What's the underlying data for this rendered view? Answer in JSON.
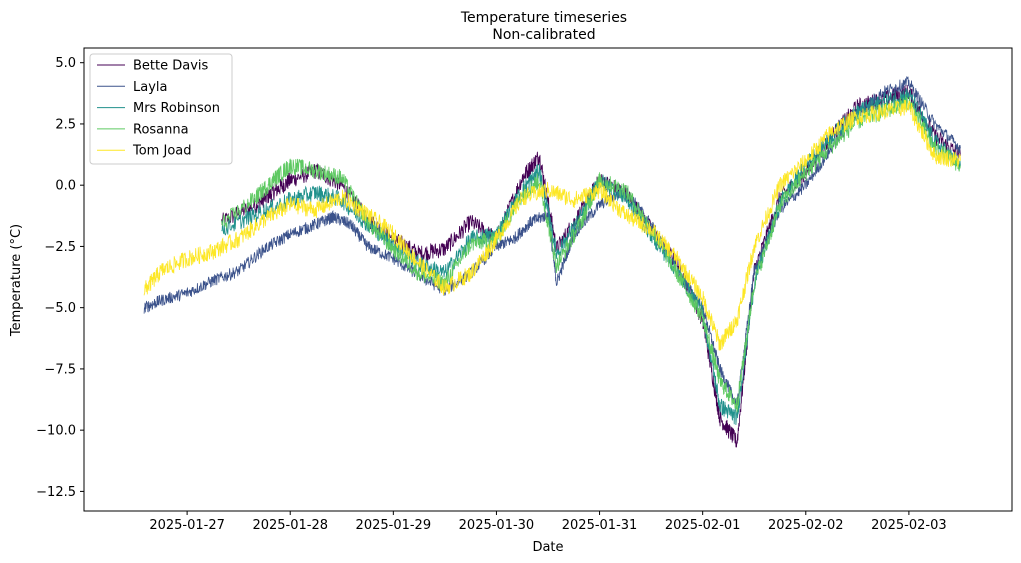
{
  "chart_data": {
    "type": "line",
    "title": "Temperature timeseries",
    "subtitle": "Non-calibrated",
    "xlabel": "Date",
    "ylabel": "Temperature (°C)",
    "xlim": [
      "2025-01-26T00:00",
      "2025-02-04T00:00"
    ],
    "ylim": [
      -13.3,
      5.6
    ],
    "x_ticks": [
      "2025-01-27",
      "2025-01-28",
      "2025-01-29",
      "2025-01-30",
      "2025-01-31",
      "2025-02-01",
      "2025-02-02",
      "2025-02-03"
    ],
    "y_ticks": [
      5.0,
      2.5,
      0.0,
      -2.5,
      -5.0,
      -7.5,
      -10.0,
      -12.5
    ],
    "y_tick_labels": [
      "5.0",
      "2.5",
      "0.0",
      "−2.5",
      "−5.0",
      "−7.5",
      "−10.0",
      "−12.5"
    ],
    "grid": false,
    "legend_position": "top-left",
    "series": [
      {
        "name": "Bette Davis",
        "color": "#440154",
        "noise": 0.35,
        "x": [
          "2025-01-27T08:00",
          "2025-01-27T16:00",
          "2025-01-27T20:00",
          "2025-01-28T00:00",
          "2025-01-28T06:00",
          "2025-01-28T12:00",
          "2025-01-28T18:00",
          "2025-01-29T00:00",
          "2025-01-29T06:00",
          "2025-01-29T12:00",
          "2025-01-29T18:00",
          "2025-01-30T00:00",
          "2025-01-30T06:00",
          "2025-01-30T10:00",
          "2025-01-30T14:00",
          "2025-01-30T20:00",
          "2025-01-31T00:00",
          "2025-01-31T06:00",
          "2025-01-31T12:00",
          "2025-01-31T18:00",
          "2025-02-01T00:00",
          "2025-02-01T04:00",
          "2025-02-01T08:00",
          "2025-02-01T12:00",
          "2025-02-01T18:00",
          "2025-02-02T00:00",
          "2025-02-02T06:00",
          "2025-02-02T12:00",
          "2025-02-02T18:00",
          "2025-02-03T00:00",
          "2025-02-03T06:00",
          "2025-02-03T12:00"
        ],
        "y": [
          -1.5,
          -0.8,
          -0.3,
          0.2,
          0.6,
          0.0,
          -1.4,
          -2.2,
          -2.8,
          -2.6,
          -1.5,
          -2.2,
          0.3,
          1.2,
          -2.6,
          -1.0,
          0.2,
          -0.3,
          -1.8,
          -3.2,
          -5.5,
          -9.5,
          -10.5,
          -3.5,
          -0.5,
          0.5,
          2.0,
          3.2,
          3.5,
          3.8,
          2.0,
          1.2
        ]
      },
      {
        "name": "Layla",
        "color": "#3b528b",
        "noise": 0.25,
        "x": [
          "2025-01-26T14:00",
          "2025-01-26T18:00",
          "2025-01-27T00:00",
          "2025-01-27T06:00",
          "2025-01-27T12:00",
          "2025-01-27T18:00",
          "2025-01-28T00:00",
          "2025-01-28T06:00",
          "2025-01-28T10:00",
          "2025-01-28T14:00",
          "2025-01-28T18:00",
          "2025-01-29T00:00",
          "2025-01-29T06:00",
          "2025-01-29T12:00",
          "2025-01-29T18:00",
          "2025-01-30T00:00",
          "2025-01-30T04:00",
          "2025-01-30T08:00",
          "2025-01-30T12:00",
          "2025-01-30T14:00",
          "2025-01-30T18:00",
          "2025-01-31T00:00",
          "2025-01-31T06:00",
          "2025-01-31T12:00",
          "2025-01-31T18:00",
          "2025-02-01T00:00",
          "2025-02-01T04:00",
          "2025-02-01T08:00",
          "2025-02-01T12:00",
          "2025-02-01T18:00",
          "2025-02-02T00:00",
          "2025-02-02T06:00",
          "2025-02-02T12:00",
          "2025-02-02T18:00",
          "2025-02-03T00:00",
          "2025-02-03T06:00",
          "2025-02-03T12:00"
        ],
        "y": [
          -5.0,
          -4.7,
          -4.4,
          -3.9,
          -3.5,
          -2.6,
          -2.0,
          -1.6,
          -1.3,
          -1.6,
          -2.5,
          -3.0,
          -3.7,
          -4.3,
          -3.6,
          -2.5,
          -2.2,
          -1.5,
          -1.2,
          -4.0,
          -2.0,
          -0.8,
          -0.2,
          -1.6,
          -3.5,
          -5.0,
          -7.5,
          -9.0,
          -3.5,
          -1.0,
          0.0,
          1.5,
          3.0,
          3.8,
          4.2,
          2.5,
          1.5
        ]
      },
      {
        "name": "Mrs Robinson",
        "color": "#21918c",
        "noise": 0.35,
        "x": [
          "2025-01-27T08:00",
          "2025-01-27T16:00",
          "2025-01-28T00:00",
          "2025-01-28T06:00",
          "2025-01-28T12:00",
          "2025-01-28T18:00",
          "2025-01-29T00:00",
          "2025-01-29T06:00",
          "2025-01-29T12:00",
          "2025-01-29T18:00",
          "2025-01-30T00:00",
          "2025-01-30T06:00",
          "2025-01-30T10:00",
          "2025-01-30T14:00",
          "2025-01-30T20:00",
          "2025-01-31T00:00",
          "2025-01-31T06:00",
          "2025-01-31T12:00",
          "2025-01-31T18:00",
          "2025-02-01T00:00",
          "2025-02-01T04:00",
          "2025-02-01T08:00",
          "2025-02-01T12:00",
          "2025-02-01T18:00",
          "2025-02-02T00:00",
          "2025-02-02T06:00",
          "2025-02-02T12:00",
          "2025-02-02T18:00",
          "2025-02-03T00:00",
          "2025-02-03T06:00",
          "2025-02-03T12:00"
        ],
        "y": [
          -1.8,
          -1.2,
          -0.6,
          -0.3,
          -0.6,
          -1.6,
          -2.4,
          -3.2,
          -3.6,
          -2.2,
          -2.0,
          -0.2,
          0.6,
          -2.8,
          -1.2,
          0.2,
          -0.5,
          -2.0,
          -3.5,
          -5.2,
          -9.0,
          -9.5,
          -4.0,
          -0.7,
          0.8,
          2.0,
          3.0,
          3.4,
          3.7,
          1.8,
          0.8
        ]
      },
      {
        "name": "Rosanna",
        "color": "#5ec962",
        "noise": 0.35,
        "x": [
          "2025-01-27T08:00",
          "2025-01-27T16:00",
          "2025-01-27T20:00",
          "2025-01-28T00:00",
          "2025-01-28T06:00",
          "2025-01-28T12:00",
          "2025-01-28T18:00",
          "2025-01-29T00:00",
          "2025-01-29T06:00",
          "2025-01-29T12:00",
          "2025-01-29T18:00",
          "2025-01-30T00:00",
          "2025-01-30T06:00",
          "2025-01-30T10:00",
          "2025-01-30T14:00",
          "2025-01-30T20:00",
          "2025-01-31T00:00",
          "2025-01-31T06:00",
          "2025-01-31T12:00",
          "2025-01-31T18:00",
          "2025-02-01T00:00",
          "2025-02-01T04:00",
          "2025-02-01T08:00",
          "2025-02-01T12:00",
          "2025-02-01T18:00",
          "2025-02-02T00:00",
          "2025-02-02T06:00",
          "2025-02-02T12:00",
          "2025-02-02T18:00",
          "2025-02-03T00:00",
          "2025-02-03T06:00",
          "2025-02-03T12:00"
        ],
        "y": [
          -1.6,
          -0.5,
          0.2,
          0.8,
          0.6,
          0.3,
          -1.5,
          -2.6,
          -3.6,
          -4.0,
          -2.4,
          -2.2,
          -0.4,
          0.2,
          -3.3,
          -1.4,
          0.2,
          -0.2,
          -1.8,
          -3.6,
          -5.4,
          -8.0,
          -9.0,
          -4.0,
          -0.8,
          0.5,
          1.6,
          2.6,
          3.0,
          3.4,
          1.5,
          0.8
        ]
      },
      {
        "name": "Tom Joad",
        "color": "#fde725",
        "noise": 0.35,
        "x": [
          "2025-01-26T14:00",
          "2025-01-26T18:00",
          "2025-01-27T00:00",
          "2025-01-27T06:00",
          "2025-01-27T12:00",
          "2025-01-27T18:00",
          "2025-01-28T00:00",
          "2025-01-28T06:00",
          "2025-01-28T12:00",
          "2025-01-28T18:00",
          "2025-01-29T00:00",
          "2025-01-29T06:00",
          "2025-01-29T12:00",
          "2025-01-29T18:00",
          "2025-01-30T00:00",
          "2025-01-30T06:00",
          "2025-01-30T12:00",
          "2025-01-30T18:00",
          "2025-01-31T00:00",
          "2025-01-31T06:00",
          "2025-01-31T12:00",
          "2025-01-31T18:00",
          "2025-02-01T00:00",
          "2025-02-01T04:00",
          "2025-02-01T08:00",
          "2025-02-01T12:00",
          "2025-02-01T18:00",
          "2025-02-02T00:00",
          "2025-02-02T06:00",
          "2025-02-02T12:00",
          "2025-02-02T18:00",
          "2025-02-03T00:00",
          "2025-02-03T06:00",
          "2025-02-03T12:00"
        ],
        "y": [
          -4.3,
          -3.5,
          -3.0,
          -2.7,
          -2.2,
          -1.4,
          -0.8,
          -1.0,
          -0.5,
          -1.2,
          -2.0,
          -3.2,
          -4.2,
          -3.6,
          -2.2,
          -0.5,
          -0.2,
          -0.6,
          -0.2,
          -1.2,
          -1.8,
          -3.0,
          -4.6,
          -6.5,
          -5.5,
          -2.5,
          0.0,
          1.0,
          2.2,
          2.8,
          3.0,
          3.2,
          1.2,
          1.0
        ]
      }
    ]
  }
}
